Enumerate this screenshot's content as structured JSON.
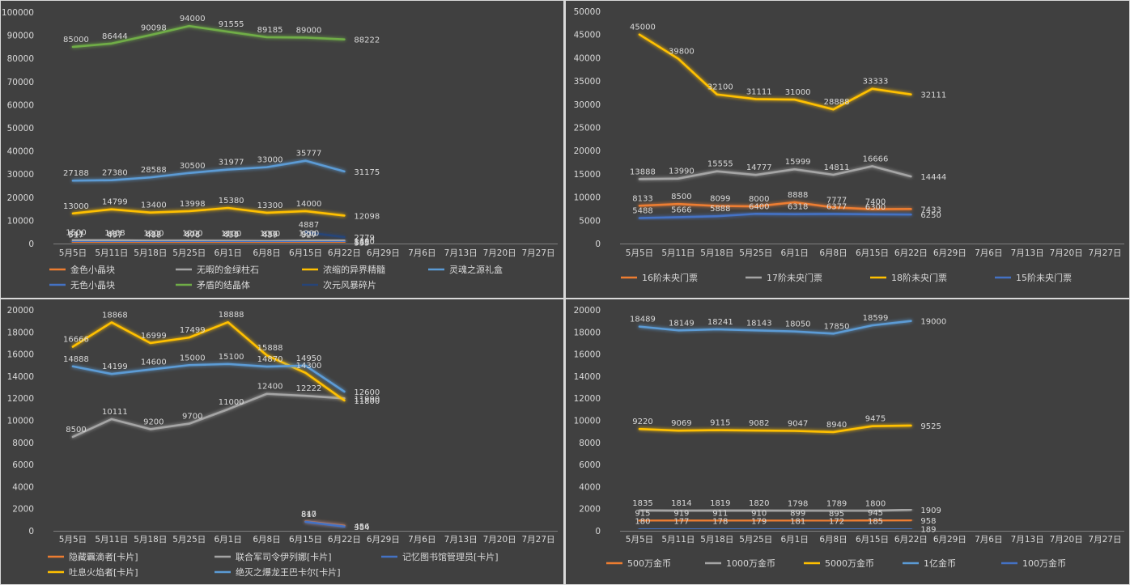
{
  "chart_data": [
    {
      "type": "line",
      "categories": [
        "5月5日",
        "5月11日",
        "5月18日",
        "5月25日",
        "6月1日",
        "6月8日",
        "6月15日",
        "6月22日",
        "6月29日",
        "7月6日",
        "7月13日",
        "7月20日",
        "7月27日"
      ],
      "yticks": [
        "0",
        "10000",
        "20000",
        "30000",
        "40000",
        "50000",
        "60000",
        "70000",
        "80000",
        "90000",
        "100000"
      ],
      "ylim": [
        0,
        100000
      ],
      "grid": false,
      "legend_position": "bottom",
      "series": [
        {
          "name": "金色小晶块",
          "color": "#ed7d31",
          "values": [
            517,
            497,
            488,
            476,
            459,
            439,
            527,
            535,
            null,
            null,
            null,
            null,
            null
          ]
        },
        {
          "name": "无暇的金绿柱石",
          "color": "#a5a5a5",
          "values": [
            1500,
            1468,
            1200,
            1200,
            1100,
            1000,
            1200,
            1300,
            null,
            null,
            null,
            null,
            null
          ]
        },
        {
          "name": "浓缩的异界精髓",
          "color": "#ffc000",
          "values": [
            13000,
            14799,
            13400,
            13998,
            15380,
            13300,
            14000,
            12098,
            null,
            null,
            null,
            null,
            null
          ]
        },
        {
          "name": "灵魂之源礼盒",
          "color": "#5b9bd5",
          "values": [
            27188,
            27380,
            28588,
            30500,
            31977,
            33000,
            35777,
            31175,
            null,
            null,
            null,
            null,
            null
          ]
        },
        {
          "name": "无色小晶块",
          "color": "#4472c4",
          "values": [
            841,
            837,
            817,
            803,
            875,
            857,
            900,
            865,
            null,
            null,
            null,
            null,
            null
          ]
        },
        {
          "name": "矛盾的结晶体",
          "color": "#70ad47",
          "values": [
            85000,
            86444,
            90098,
            94000,
            91555,
            89185,
            89000,
            88222,
            null,
            null,
            null,
            null,
            null
          ]
        },
        {
          "name": "次元风暴碎片",
          "color": "#264478",
          "values": [
            null,
            null,
            null,
            null,
            null,
            null,
            4887,
            2779,
            null,
            null,
            null,
            null,
            null
          ]
        }
      ]
    },
    {
      "type": "line",
      "categories": [
        "5月5日",
        "5月11日",
        "5月18日",
        "5月25日",
        "6月1日",
        "6月8日",
        "6月15日",
        "6月22日",
        "6月29日",
        "7月6日",
        "7月13日",
        "7月20日",
        "7月27日"
      ],
      "yticks": [
        "0",
        "5000",
        "10000",
        "15000",
        "20000",
        "25000",
        "30000",
        "35000",
        "40000",
        "45000",
        "50000"
      ],
      "ylim": [
        0,
        50000
      ],
      "grid": false,
      "legend_position": "bottom",
      "series": [
        {
          "name": "16阶未央门票",
          "color": "#ed7d31",
          "values": [
            8133,
            8500,
            8099,
            8000,
            8888,
            7777,
            7400,
            7433,
            null,
            null,
            null,
            null,
            null
          ]
        },
        {
          "name": "17阶未央门票",
          "color": "#a5a5a5",
          "values": [
            13888,
            13990,
            15555,
            14777,
            15999,
            14811,
            16666,
            14444,
            null,
            null,
            null,
            null,
            null
          ]
        },
        {
          "name": "18阶未央门票",
          "color": "#ffc000",
          "values": [
            45000,
            39800,
            32100,
            31111,
            31000,
            28888,
            33333,
            32111,
            null,
            null,
            null,
            null,
            null
          ]
        },
        {
          "name": "15阶未央门票",
          "color": "#4472c4",
          "values": [
            5488,
            5666,
            5888,
            6400,
            6318,
            6377,
            6300,
            6250,
            null,
            null,
            null,
            null,
            null
          ]
        }
      ]
    },
    {
      "type": "line",
      "categories": [
        "5月5日",
        "5月11日",
        "5月18日",
        "5月25日",
        "6月1日",
        "6月8日",
        "6月15日",
        "6月22日",
        "6月29日",
        "7月6日",
        "7月13日",
        "7月20日",
        "7月27日"
      ],
      "yticks": [
        "0",
        "2000",
        "4000",
        "6000",
        "8000",
        "10000",
        "12000",
        "14000",
        "16000",
        "18000",
        "20000"
      ],
      "ylim": [
        0,
        20000
      ],
      "grid": false,
      "legend_position": "bottom",
      "series": [
        {
          "name": "隐藏覊滴者[卡片]",
          "color": "#ed7d31",
          "values": [
            null,
            null,
            null,
            null,
            null,
            null,
            847,
            456,
            null,
            null,
            null,
            null,
            null
          ]
        },
        {
          "name": "联合军司令伊列娜[卡片]",
          "color": "#a5a5a5",
          "values": [
            8500,
            10111,
            9200,
            9700,
            11000,
            12400,
            12222,
            11990,
            null,
            null,
            null,
            null,
            null
          ]
        },
        {
          "name": "记忆图书馆管理员[卡片]",
          "color": "#4472c4",
          "values": [
            null,
            null,
            null,
            null,
            null,
            null,
            810,
            384,
            null,
            null,
            null,
            null,
            null
          ]
        },
        {
          "name": "吐息火焰者[卡片]",
          "color": "#ffc000",
          "values": [
            16666,
            18868,
            16999,
            17499,
            18888,
            15888,
            14300,
            11800,
            null,
            null,
            null,
            null,
            null
          ]
        },
        {
          "name": "绝灭之爆龙王巴卡尔[卡片]",
          "color": "#5b9bd5",
          "values": [
            14888,
            14199,
            14600,
            15000,
            15100,
            14870,
            14950,
            12600,
            null,
            null,
            null,
            null,
            null
          ]
        }
      ]
    },
    {
      "type": "line",
      "categories": [
        "5月5日",
        "5月11日",
        "5月18日",
        "5月25日",
        "6月1日",
        "6月8日",
        "6月15日",
        "6月22日",
        "6月29日",
        "7月6日",
        "7月13日",
        "7月20日",
        "7月27日"
      ],
      "yticks": [
        "0",
        "2000",
        "4000",
        "6000",
        "8000",
        "10000",
        "12000",
        "14000",
        "16000",
        "18000",
        "20000"
      ],
      "ylim": [
        0,
        20000
      ],
      "grid": false,
      "legend_position": "bottom",
      "series": [
        {
          "name": "500万金币",
          "color": "#ed7d31",
          "values": [
            915,
            919,
            911,
            910,
            899,
            895,
            945,
            958,
            null,
            null,
            null,
            null,
            null
          ]
        },
        {
          "name": "1000万金币",
          "color": "#a5a5a5",
          "values": [
            1835,
            1814,
            1819,
            1820,
            1798,
            1789,
            1800,
            1909,
            null,
            null,
            null,
            null,
            null
          ]
        },
        {
          "name": "5000万金币",
          "color": "#ffc000",
          "values": [
            9220,
            9069,
            9115,
            9082,
            9047,
            8940,
            9475,
            9525,
            null,
            null,
            null,
            null,
            null
          ]
        },
        {
          "name": "1亿金币",
          "color": "#5b9bd5",
          "values": [
            18489,
            18149,
            18241,
            18143,
            18050,
            17850,
            18599,
            19000,
            null,
            null,
            null,
            null,
            null
          ]
        },
        {
          "name": "100万金币",
          "color": "#4472c4",
          "values": [
            180,
            177,
            178,
            179,
            181,
            172,
            185,
            189,
            null,
            null,
            null,
            null,
            null
          ]
        }
      ]
    }
  ]
}
